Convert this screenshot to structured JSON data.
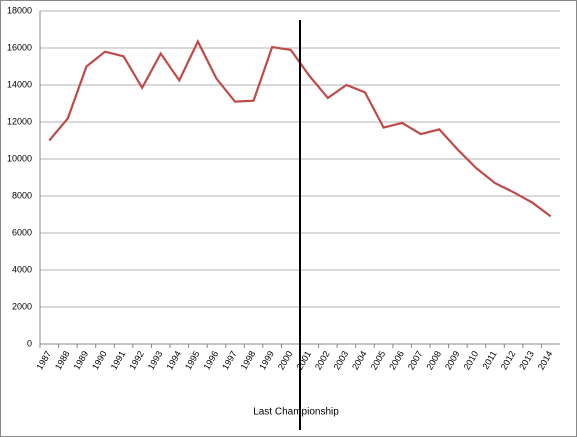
{
  "chart_data": {
    "type": "line",
    "categories": [
      "1987",
      "1988",
      "1989",
      "1990",
      "1991",
      "1992",
      "1993",
      "1994",
      "1995",
      "1996",
      "1997",
      "1998",
      "1999",
      "2000",
      "2001",
      "2002",
      "2003",
      "2004",
      "2005",
      "2006",
      "2007",
      "2008",
      "2009",
      "2010",
      "2011",
      "2012",
      "2013",
      "2014"
    ],
    "series": [
      {
        "color": "#be4b48",
        "values": [
          11000,
          12200,
          15000,
          15800,
          15550,
          13850,
          15700,
          14250,
          16350,
          14350,
          13100,
          13150,
          16050,
          15900,
          14500,
          13300,
          14000,
          13600,
          11700,
          11950,
          11350,
          11600,
          10500,
          9500,
          8700,
          8200,
          7650,
          6900
        ]
      }
    ],
    "ylim": [
      0,
      18000
    ],
    "yticks": [
      0,
      2000,
      4000,
      6000,
      8000,
      10000,
      12000,
      14000,
      16000,
      18000
    ],
    "grid": true,
    "annotation": "Last Championship"
  }
}
